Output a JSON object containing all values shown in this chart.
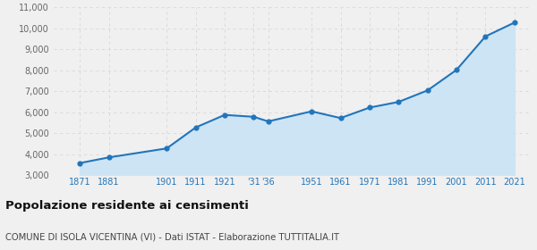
{
  "years": [
    1871,
    1881,
    1901,
    1911,
    1921,
    1931,
    1936,
    1951,
    1961,
    1971,
    1981,
    1991,
    2001,
    2011,
    2021
  ],
  "population": [
    3570,
    3840,
    4270,
    5270,
    5870,
    5780,
    5560,
    6040,
    5720,
    6220,
    6490,
    7040,
    8020,
    9620,
    10280
  ],
  "x_labels": [
    "1871",
    "1881",
    "1901",
    "1911",
    "1921",
    "'31",
    "'36",
    "1951",
    "1961",
    "1971",
    "1981",
    "1991",
    "2001",
    "2011",
    "2021"
  ],
  "line_color": "#2275bb",
  "fill_color": "#cde4f5",
  "marker_color": "#2275bb",
  "bg_color": "#f0f0f0",
  "plot_bg_color": "#f0f0f0",
  "title": "Popolazione residente ai censimenti",
  "subtitle": "COMUNE DI ISOLA VICENTINA (VI) - Dati ISTAT - Elaborazione TUTTITALIA.IT",
  "ylim": [
    3000,
    11000
  ],
  "yticks": [
    3000,
    4000,
    5000,
    6000,
    7000,
    8000,
    9000,
    10000,
    11000
  ],
  "grid_color": "#d8d8d8",
  "title_fontsize": 9.5,
  "subtitle_fontsize": 7.2,
  "tick_fontsize": 7,
  "title_color": "#111111",
  "subtitle_color": "#444444",
  "ytick_color": "#666666",
  "xtick_color": "#2275bb"
}
